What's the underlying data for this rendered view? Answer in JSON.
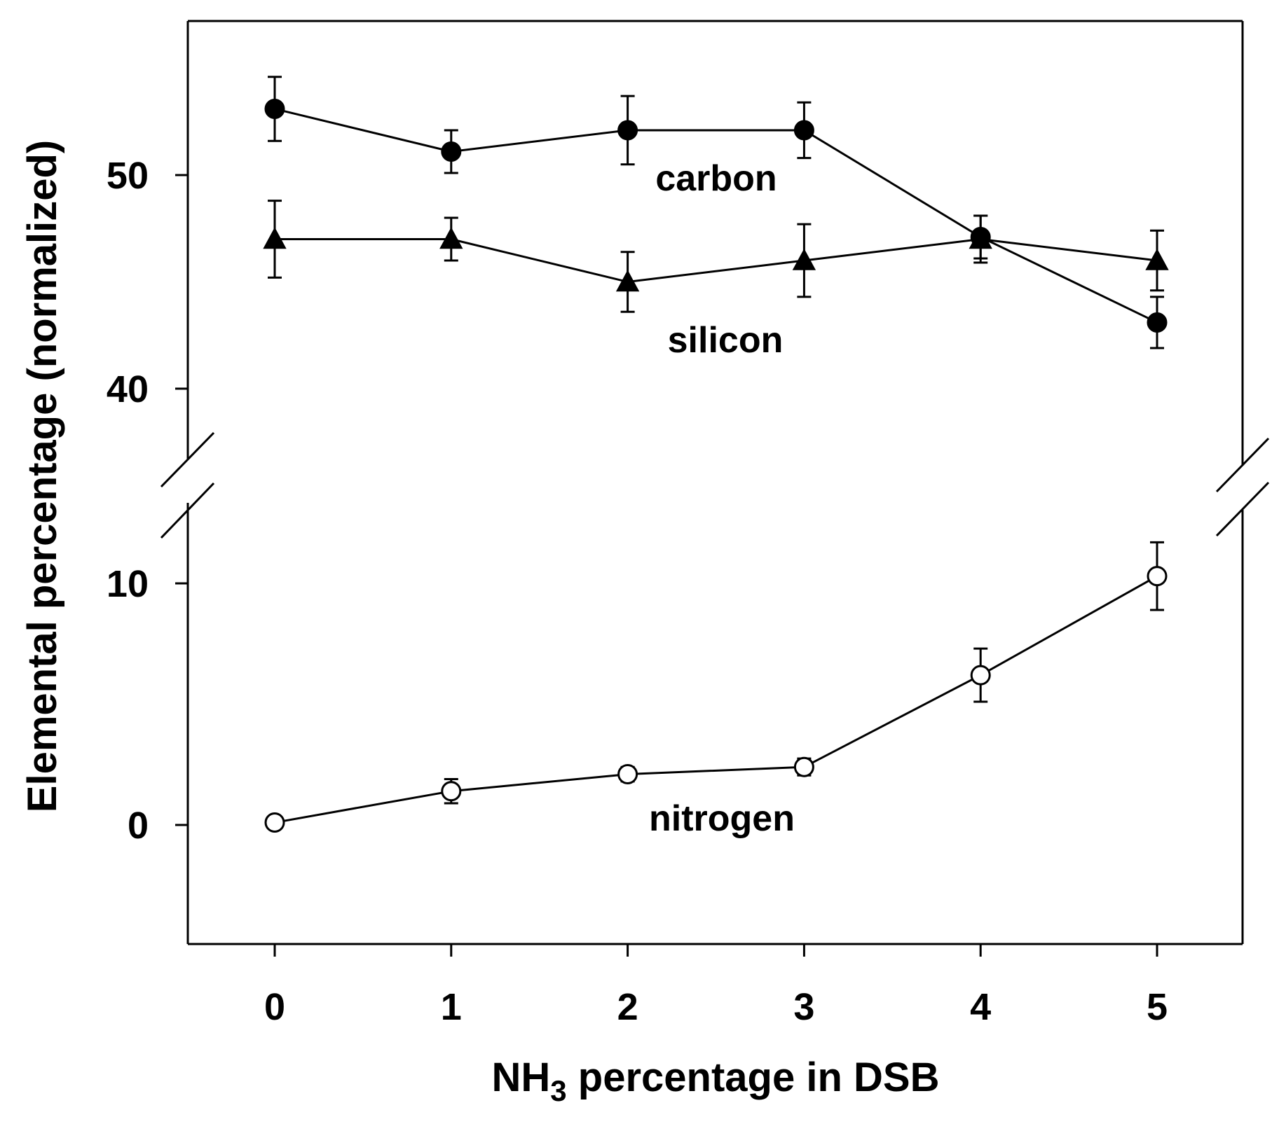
{
  "chart_data": {
    "type": "line",
    "xlabel": {
      "main": "NH",
      "sub": "3",
      "rest": " percentage in DSB"
    },
    "ylabel": "Elemental percentage (normalized)",
    "x_ticks": [
      0,
      1,
      2,
      3,
      4,
      5
    ],
    "y_ticks_upper": [
      40,
      50
    ],
    "y_ticks_lower": [
      0,
      10
    ],
    "y_ranges": {
      "upper": [
        34,
        57
      ],
      "lower": [
        -4,
        13
      ]
    },
    "broken_y_axis": true,
    "grid": false,
    "marker_colors": {
      "carbon": "#000000",
      "silicon": "#000000",
      "nitrogen": "#ffffff"
    },
    "series": [
      {
        "name": "carbon",
        "marker": "filled-circle",
        "panel": "upper",
        "x": [
          0,
          1,
          2,
          3,
          4,
          5
        ],
        "y": [
          53.1,
          51.1,
          52.1,
          52.1,
          47.1,
          43.1
        ],
        "err": [
          1.5,
          1.0,
          1.6,
          1.3,
          1.0,
          1.2
        ]
      },
      {
        "name": "silicon",
        "marker": "filled-triangle",
        "panel": "upper",
        "x": [
          0,
          1,
          2,
          3,
          4,
          5
        ],
        "y": [
          47.0,
          47.0,
          45.0,
          46.0,
          47.0,
          46.0
        ],
        "err": [
          1.8,
          1.0,
          1.4,
          1.7,
          1.1,
          1.4
        ]
      },
      {
        "name": "nitrogen",
        "marker": "open-circle",
        "panel": "lower",
        "x": [
          0,
          1,
          2,
          3,
          4,
          5
        ],
        "y": [
          0.1,
          1.4,
          2.1,
          2.4,
          6.2,
          10.3
        ],
        "err": [
          0,
          0.5,
          0.3,
          0.35,
          1.1,
          1.4
        ]
      }
    ]
  }
}
